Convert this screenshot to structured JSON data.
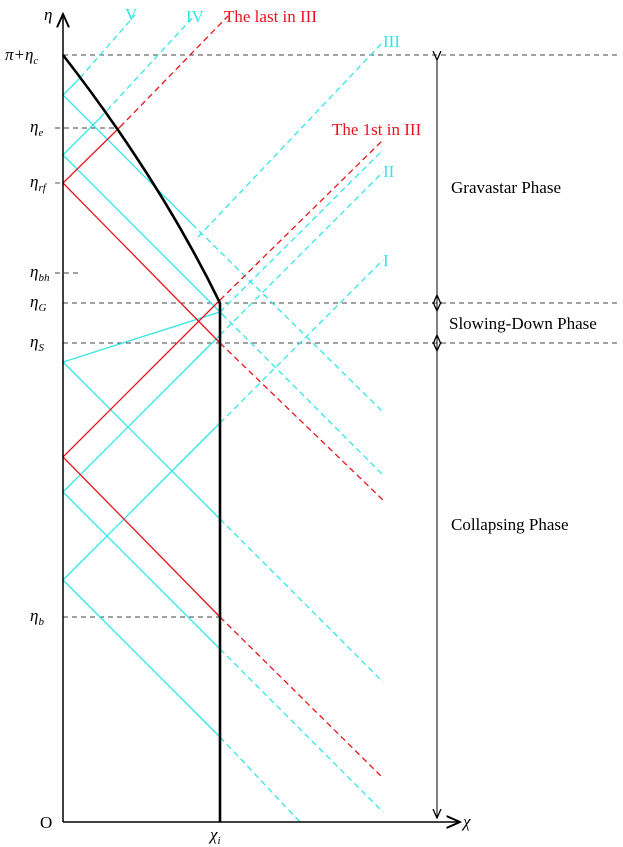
{
  "axes": {
    "y_label": "η",
    "x_label": "χ",
    "origin": "O",
    "x_mark": {
      "symbol": "χ",
      "sub": "i"
    }
  },
  "y_marks": [
    {
      "symbol": "π+η",
      "sub": "c"
    },
    {
      "symbol": "η",
      "sub": "e"
    },
    {
      "symbol": "η",
      "sub": "rf"
    },
    {
      "symbol": "η",
      "sub": "bh"
    },
    {
      "symbol": "η",
      "sub": "G"
    },
    {
      "symbol": "η",
      "sub": "S"
    },
    {
      "symbol": "η",
      "sub": "b"
    }
  ],
  "rays": {
    "v": "V",
    "iv": "IV",
    "last_iii": "The last in III",
    "iii": "III",
    "first_iii": "The 1st in III",
    "ii": "II",
    "i": "I"
  },
  "phases": [
    "Gravastar Phase",
    "Slowing-Down Phase",
    "Collapsing Phase"
  ]
}
